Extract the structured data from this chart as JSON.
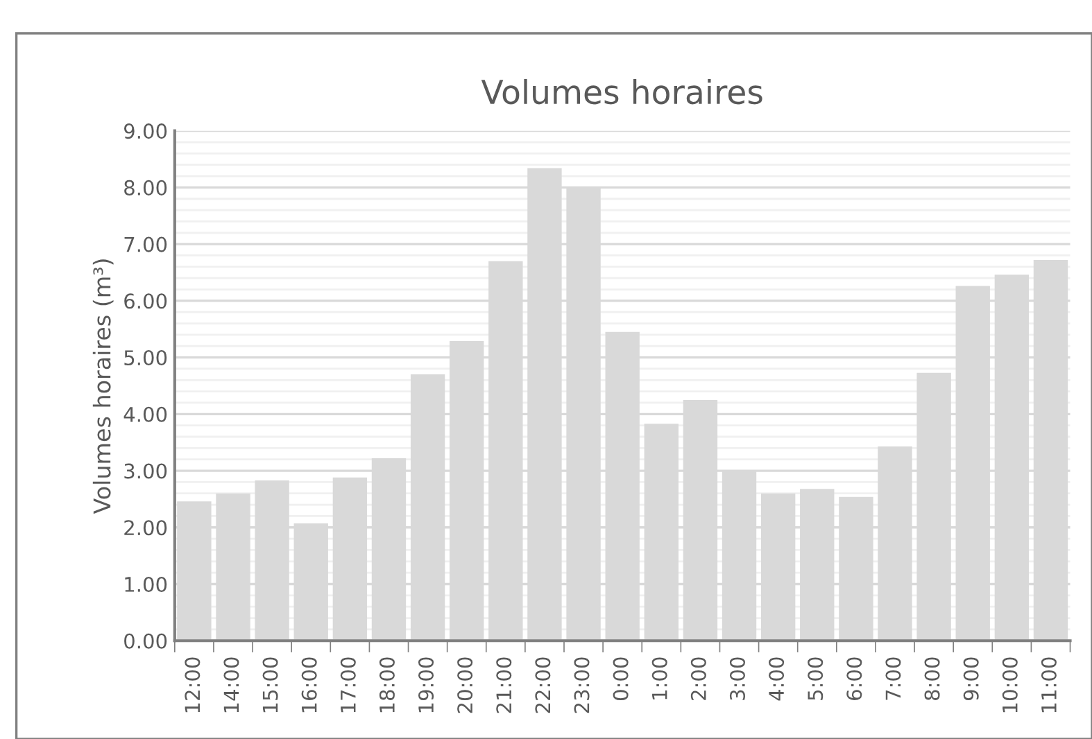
{
  "chart_data": {
    "type": "bar",
    "title": "Volumes horaires",
    "ylabel": "Volumes horaires (m³)",
    "categories": [
      "12:00",
      "14:00",
      "15:00",
      "16:00",
      "17:00",
      "18:00",
      "19:00",
      "20:00",
      "21:00",
      "22:00",
      "23:00",
      "0:00",
      "1:00",
      "2:00",
      "3:00",
      "4:00",
      "5:00",
      "6:00",
      "7:00",
      "8:00",
      "9:00",
      "10:00",
      "11:00"
    ],
    "values": [
      2.46,
      2.6,
      2.83,
      2.07,
      2.88,
      3.22,
      4.7,
      5.29,
      6.7,
      8.34,
      8.01,
      5.45,
      3.83,
      4.25,
      3.0,
      2.6,
      2.68,
      2.54,
      3.43,
      4.73,
      6.26,
      6.46,
      6.72
    ],
    "color": "#d9d9d9",
    "ylim": [
      0,
      9
    ],
    "yticks": [
      {
        "value": 0,
        "label": "0.00"
      },
      {
        "value": 1,
        "label": "1.00"
      },
      {
        "value": 2,
        "label": "2.00"
      },
      {
        "value": 3,
        "label": "3.00"
      },
      {
        "value": 4,
        "label": "4.00"
      },
      {
        "value": 5,
        "label": "5.00"
      },
      {
        "value": 6,
        "label": "6.00"
      },
      {
        "value": 7,
        "label": "7.00"
      },
      {
        "value": 8,
        "label": "8.00"
      },
      {
        "value": 9,
        "label": "9.00"
      }
    ],
    "grid": "y",
    "legend": false
  }
}
